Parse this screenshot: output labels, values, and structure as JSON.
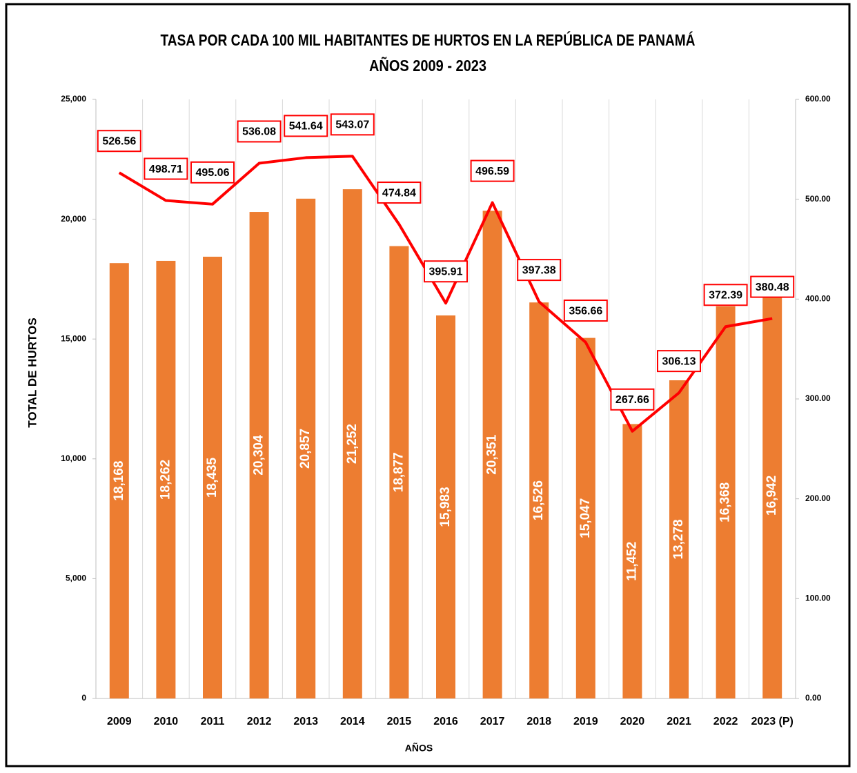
{
  "chart_data": {
    "type": "bar_line",
    "title": [
      "TASA POR CADA 100 MIL HABITANTES DE HURTOS EN LA REPÚBLICA DE PANAMÁ",
      "AÑOS 2009 - 2023"
    ],
    "x_label": "AÑOS",
    "y_label": "TOTAL DE HURTOS",
    "categories": [
      "2009",
      "2010",
      "2011",
      "2012",
      "2013",
      "2014",
      "2015",
      "2016",
      "2017",
      "2018",
      "2019",
      "2020",
      "2021",
      "2022",
      "2023 (P)"
    ],
    "series": [
      {
        "type": "bar",
        "color": "#ed7d31",
        "axis": "y",
        "values": [
          18168,
          18262,
          18435,
          20304,
          20857,
          21252,
          18877,
          15983,
          20351,
          16526,
          15047,
          11452,
          13278,
          16368,
          16942
        ],
        "value_labels": [
          "18,168",
          "18,262",
          "18,435",
          "20,304",
          "20,857",
          "21,252",
          "18,877",
          "15,983",
          "20,351",
          "16,526",
          "15,047",
          "11,452",
          "13,278",
          "16,368",
          "16,942"
        ]
      },
      {
        "type": "line",
        "color": "#ff0000",
        "axis": "y2",
        "values": [
          526.56,
          498.71,
          495.06,
          536.08,
          541.64,
          543.07,
          474.84,
          395.91,
          496.59,
          397.38,
          356.66,
          267.66,
          306.13,
          372.39,
          380.48
        ]
      }
    ],
    "ylim": [
      0,
      25000
    ],
    "yticks": [
      0,
      {
        "value": 5000,
        "label": "5,000"
      },
      {
        "value": 10000,
        "label": "10,000"
      },
      {
        "value": 15000,
        "label": "15,000"
      },
      {
        "value": 20000,
        "label": "20,000"
      },
      {
        "value": 25000,
        "label": "25,000"
      }
    ],
    "y2lim": [
      0,
      600
    ],
    "y2ticks": [
      {
        "value": 0,
        "label": "0.00"
      },
      {
        "value": 100,
        "label": "100.00"
      },
      {
        "value": 200,
        "label": "200.00"
      },
      {
        "value": 300,
        "label": "300.00"
      },
      {
        "value": 400,
        "label": "400.00"
      },
      {
        "value": 500,
        "label": "500.00"
      },
      {
        "value": 600,
        "label": "600.00"
      }
    ],
    "grid": true
  }
}
